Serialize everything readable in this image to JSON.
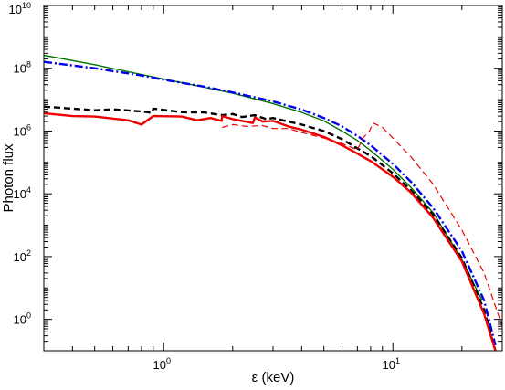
{
  "chart_data": {
    "type": "line",
    "title": "",
    "xlabel": "ε (keV)",
    "ylabel": "Photon flux",
    "x_scale": "log",
    "y_scale": "log",
    "xlim": [
      0.3,
      30
    ],
    "ylim": [
      0.1,
      10000000000.0
    ],
    "grid": false,
    "x_ticks": [
      {
        "value": 1,
        "base": "10",
        "exp": "0"
      },
      {
        "value": 10,
        "base": "10",
        "exp": "1"
      }
    ],
    "y_ticks": [
      {
        "value": 1,
        "base": "10",
        "exp": "0"
      },
      {
        "value": 100,
        "base": "10",
        "exp": "2"
      },
      {
        "value": 10000,
        "base": "10",
        "exp": "4"
      },
      {
        "value": 1000000,
        "base": "10",
        "exp": "6"
      },
      {
        "value": 100000000,
        "base": "10",
        "exp": "8"
      },
      {
        "value": 10000000000,
        "base": "10",
        "exp": "10"
      }
    ],
    "series": [
      {
        "color": "#007700",
        "style": "solid",
        "width": 1.4,
        "x": [
          0.3,
          0.5,
          0.8,
          1.0,
          1.5,
          2.0,
          3.0,
          4.0,
          5.0,
          6.0,
          7.0,
          8.0,
          10.0,
          12.0,
          15.0,
          20.0,
          24.5
        ],
        "y": [
          260000000.0,
          130000000.0,
          63000000.0,
          45000000.0,
          25000000.0,
          16000000.0,
          7500000.0,
          3900000.0,
          2100000.0,
          1000000.0,
          500000.0,
          240000.0,
          60000.0,
          16000.0,
          2500.0,
          80,
          4
        ]
      },
      {
        "color": "#0000ee",
        "style": "dashdot",
        "width": 2.4,
        "x": [
          0.3,
          0.5,
          0.8,
          1.0,
          1.5,
          2.0,
          3.0,
          4.0,
          5.0,
          6.0,
          7.0,
          8.0,
          10.0,
          12.0,
          15.0,
          20.0,
          25.0,
          28.0
        ],
        "y": [
          160000000.0,
          100000000.0,
          59000000.0,
          43000000.0,
          26000000.0,
          17000000.0,
          8800000.0,
          4800000.0,
          2600000.0,
          1400000.0,
          700000.0,
          350000.0,
          90000.0,
          24000.0,
          3500.0,
          150,
          4,
          0.15
        ]
      },
      {
        "color": "#000000",
        "style": "dashed",
        "width": 2.4,
        "x": [
          0.3,
          0.5,
          0.6,
          0.8,
          0.89,
          0.9,
          1.2,
          1.5,
          1.8,
          2.0,
          2.2,
          2.5,
          2.8,
          3.0,
          3.5,
          4.0,
          5.0,
          6.0,
          7.0,
          8.0,
          10.0,
          12.0,
          15.0,
          20.0,
          25.0,
          28.0
        ],
        "y": [
          6000000.0,
          4600000.0,
          4900000.0,
          4200000.0,
          3800000.0,
          5200000.0,
          4000000.0,
          3900000.0,
          3200000.0,
          3500000.0,
          2800000.0,
          3200000.0,
          2400000.0,
          2600000.0,
          2000000.0,
          1600000.0,
          1000000.0,
          550000.0,
          280000.0,
          160000.0,
          45000.0,
          13000.0,
          2200.0,
          90,
          2,
          0.1
        ]
      },
      {
        "color": "#ee0000",
        "style": "solid",
        "width": 2.4,
        "x": [
          0.3,
          0.4,
          0.5,
          0.6,
          0.7,
          0.8,
          0.9,
          1.2,
          1.4,
          1.6,
          1.79,
          1.8,
          2.0,
          2.2,
          2.45,
          2.5,
          2.7,
          3.0,
          3.5,
          4.0,
          5.0,
          6.0,
          7.0,
          8.0,
          10.0,
          12.0,
          15.0,
          20.0,
          25.0,
          28.0
        ],
        "y": [
          3700000.0,
          3000000.0,
          2900000.0,
          2500000.0,
          2200000.0,
          1600000.0,
          3000000.0,
          2900000.0,
          2200000.0,
          2600000.0,
          2100000.0,
          3000000.0,
          2400000.0,
          2100000.0,
          1800000.0,
          2700000.0,
          2000000.0,
          2100000.0,
          1400000.0,
          1100000.0,
          650000.0,
          350000.0,
          190000.0,
          110000.0,
          35000.0,
          11000.0,
          1700.0,
          70,
          1.5,
          0.1
        ]
      },
      {
        "color": "#ee0000",
        "style": "dashed",
        "width": 1.2,
        "x": [
          1.8,
          2.0,
          2.3,
          2.7,
          3.0,
          3.5,
          4.0,
          5.0,
          6.0,
          7.0,
          7.4,
          7.9,
          8.2,
          8.5,
          9.0,
          10.0,
          12.0,
          15.0,
          20.0,
          25.0,
          30.0,
          32.0
        ],
        "y": [
          1300000.0,
          1600000.0,
          1400000.0,
          1500000.0,
          1200000.0,
          1200000.0,
          900000.0,
          600000.0,
          400000.0,
          250000.0,
          600000.0,
          1000000.0,
          1800000.0,
          1600000.0,
          1300000.0,
          600000.0,
          150000.0,
          20000.0,
          700,
          30,
          0.6,
          0.1
        ]
      }
    ]
  }
}
